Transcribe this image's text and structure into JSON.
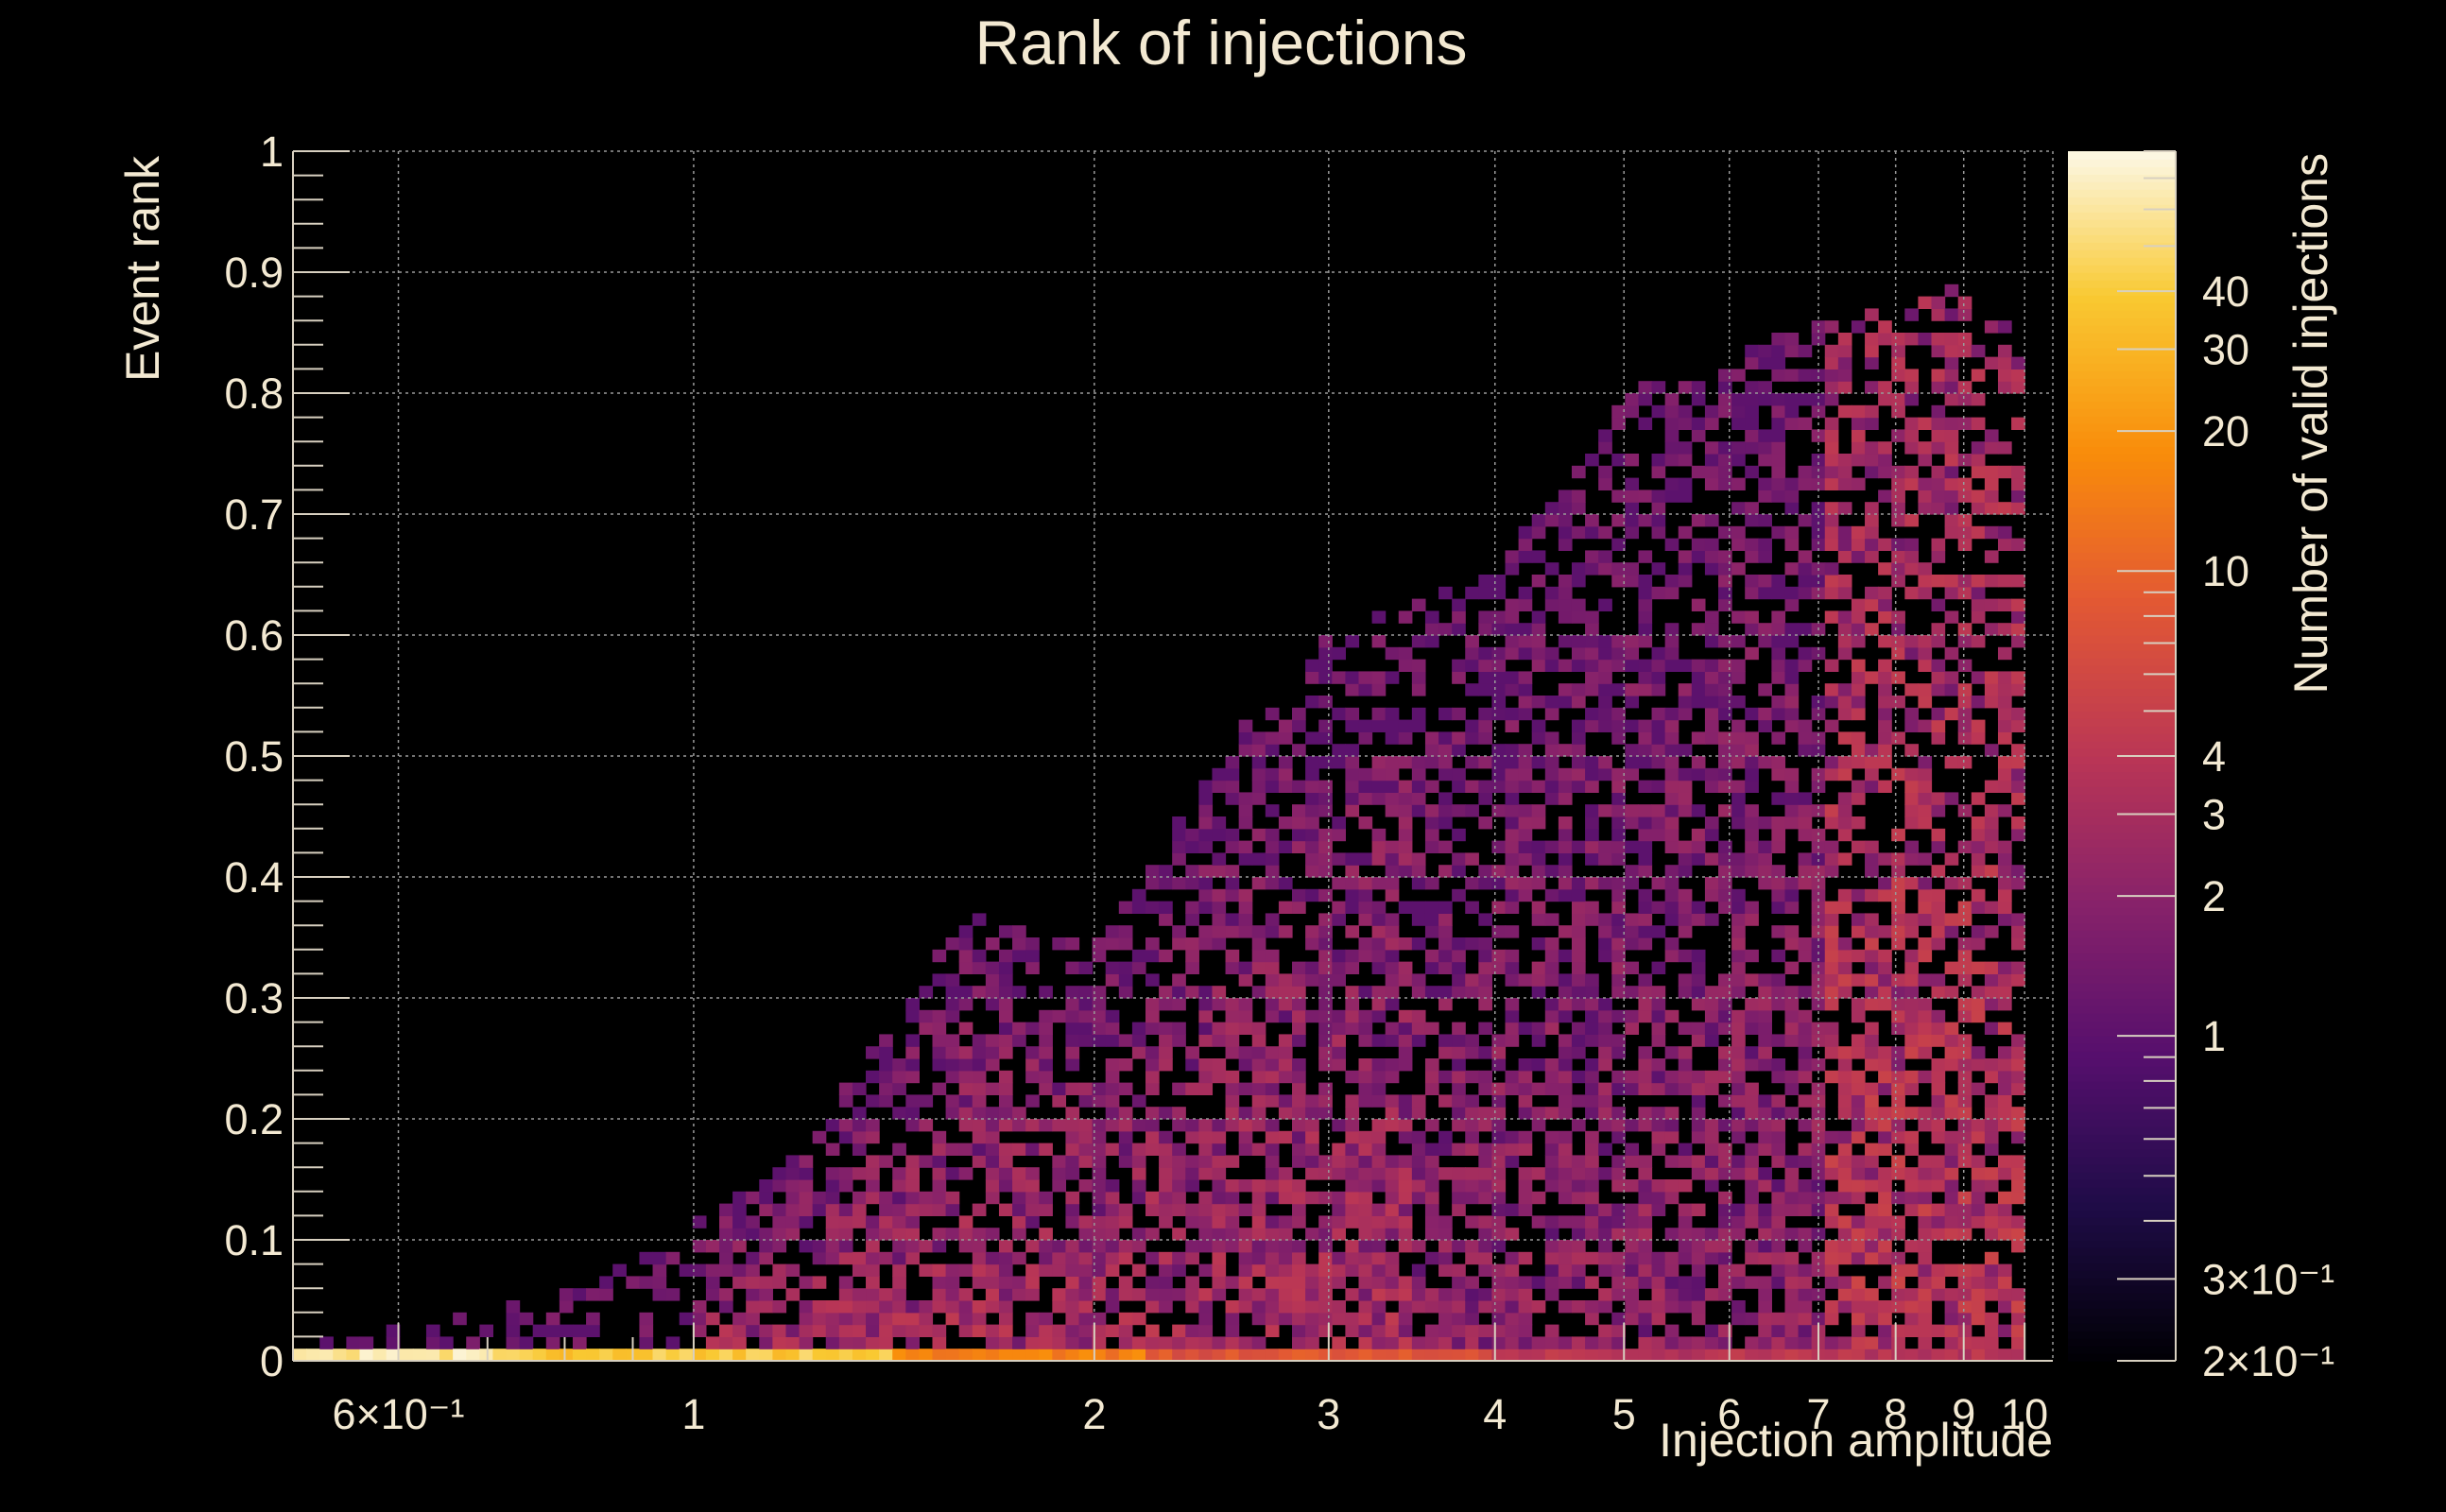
{
  "chart_data": {
    "type": "heatmap",
    "title": "Rank of injections",
    "xlabel": "Injection amplitude",
    "ylabel": "Event rank",
    "zlabel": "Number of valid injections",
    "x_scale": "log",
    "z_scale": "log",
    "xlim": [
      0.5,
      10.5
    ],
    "ylim": [
      0,
      1
    ],
    "zlim": [
      0.2,
      80
    ],
    "grid": true,
    "colormap": "inferno",
    "x_ticks": [
      {
        "value": 0.6,
        "label": "6×10⁻¹"
      },
      {
        "value": 1,
        "label": "1"
      },
      {
        "value": 2,
        "label": "2"
      },
      {
        "value": 3,
        "label": "3"
      },
      {
        "value": 4,
        "label": "4"
      },
      {
        "value": 5,
        "label": "5"
      },
      {
        "value": 6,
        "label": "6"
      },
      {
        "value": 7,
        "label": "7"
      },
      {
        "value": 8,
        "label": "8"
      },
      {
        "value": 9,
        "label": "9"
      },
      {
        "value": 10,
        "label": "10"
      }
    ],
    "y_ticks": [
      {
        "value": 0,
        "label": "0"
      },
      {
        "value": 0.1,
        "label": "0.1"
      },
      {
        "value": 0.2,
        "label": "0.2"
      },
      {
        "value": 0.3,
        "label": "0.3"
      },
      {
        "value": 0.4,
        "label": "0.4"
      },
      {
        "value": 0.5,
        "label": "0.5"
      },
      {
        "value": 0.6,
        "label": "0.6"
      },
      {
        "value": 0.7,
        "label": "0.7"
      },
      {
        "value": 0.8,
        "label": "0.8"
      },
      {
        "value": 0.9,
        "label": "0.9"
      },
      {
        "value": 1,
        "label": "1"
      }
    ],
    "z_ticks": [
      {
        "value": 0.2,
        "label": "2×10⁻¹"
      },
      {
        "value": 0.3,
        "label": "3×10⁻¹"
      },
      {
        "value": 1,
        "label": "1"
      },
      {
        "value": 2,
        "label": "2"
      },
      {
        "value": 3,
        "label": "3"
      },
      {
        "value": 4,
        "label": "4"
      },
      {
        "value": 10,
        "label": "10"
      },
      {
        "value": 20,
        "label": "20"
      },
      {
        "value": 30,
        "label": "30"
      },
      {
        "value": 40,
        "label": "40"
      }
    ],
    "x_bins": 130,
    "y_bins": 100,
    "bottom_row_counts": [
      {
        "x_range": [
          0.5,
          0.7
        ],
        "count": 60
      },
      {
        "x_range": [
          0.7,
          1.4
        ],
        "count": 40
      },
      {
        "x_range": [
          1.4,
          2.2
        ],
        "count": 15
      },
      {
        "x_range": [
          2.2,
          4
        ],
        "count": 8
      },
      {
        "x_range": [
          4,
          10.5
        ],
        "count": 4
      }
    ],
    "rank_envelope": [
      {
        "x": 0.55,
        "max_rank": 0.02
      },
      {
        "x": 0.7,
        "max_rank": 0.04
      },
      {
        "x": 0.9,
        "max_rank": 0.08
      },
      {
        "x": 1.2,
        "max_rank": 0.17
      },
      {
        "x": 1.6,
        "max_rank": 0.37
      },
      {
        "x": 2,
        "max_rank": 0.34
      },
      {
        "x": 2.6,
        "max_rank": 0.53
      },
      {
        "x": 3,
        "max_rank": 0.6
      },
      {
        "x": 4,
        "max_rank": 0.65
      },
      {
        "x": 5,
        "max_rank": 0.8
      },
      {
        "x": 6,
        "max_rank": 0.83
      },
      {
        "x": 7,
        "max_rank": 0.86
      },
      {
        "x": 8,
        "max_rank": 0.87
      },
      {
        "x": 9,
        "max_rank": 0.89
      },
      {
        "x": 10,
        "max_rank": 0.84
      }
    ]
  }
}
